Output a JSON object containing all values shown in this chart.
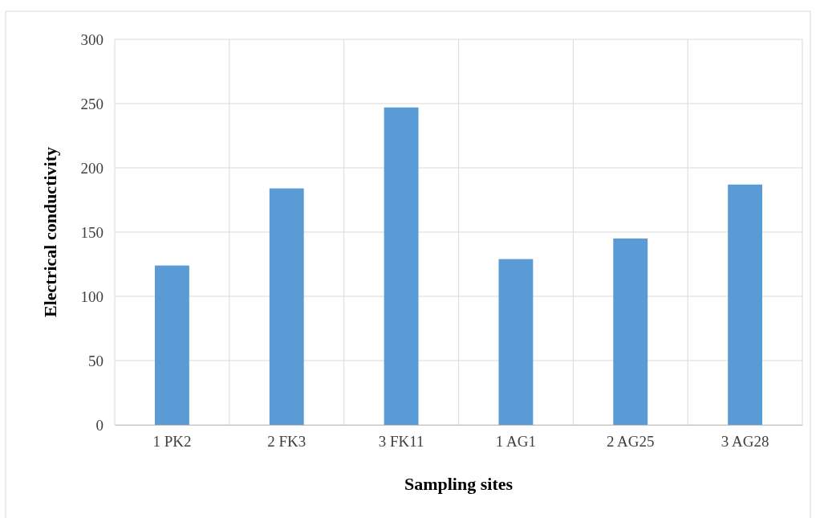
{
  "chart_data": {
    "type": "bar",
    "xlabel": "Sampling sites",
    "ylabel": "Electrical conductivity",
    "categories": [
      "1 PK2",
      "2 FK3",
      "3 FK11",
      "1 AG1",
      "2 AG25",
      "3 AG28"
    ],
    "values": [
      124,
      184,
      247,
      129,
      145,
      187
    ],
    "color": "#5b9bd5",
    "ylim": [
      0,
      300
    ],
    "yticks": [
      0,
      50,
      100,
      150,
      200,
      250,
      300
    ],
    "grid": true
  }
}
